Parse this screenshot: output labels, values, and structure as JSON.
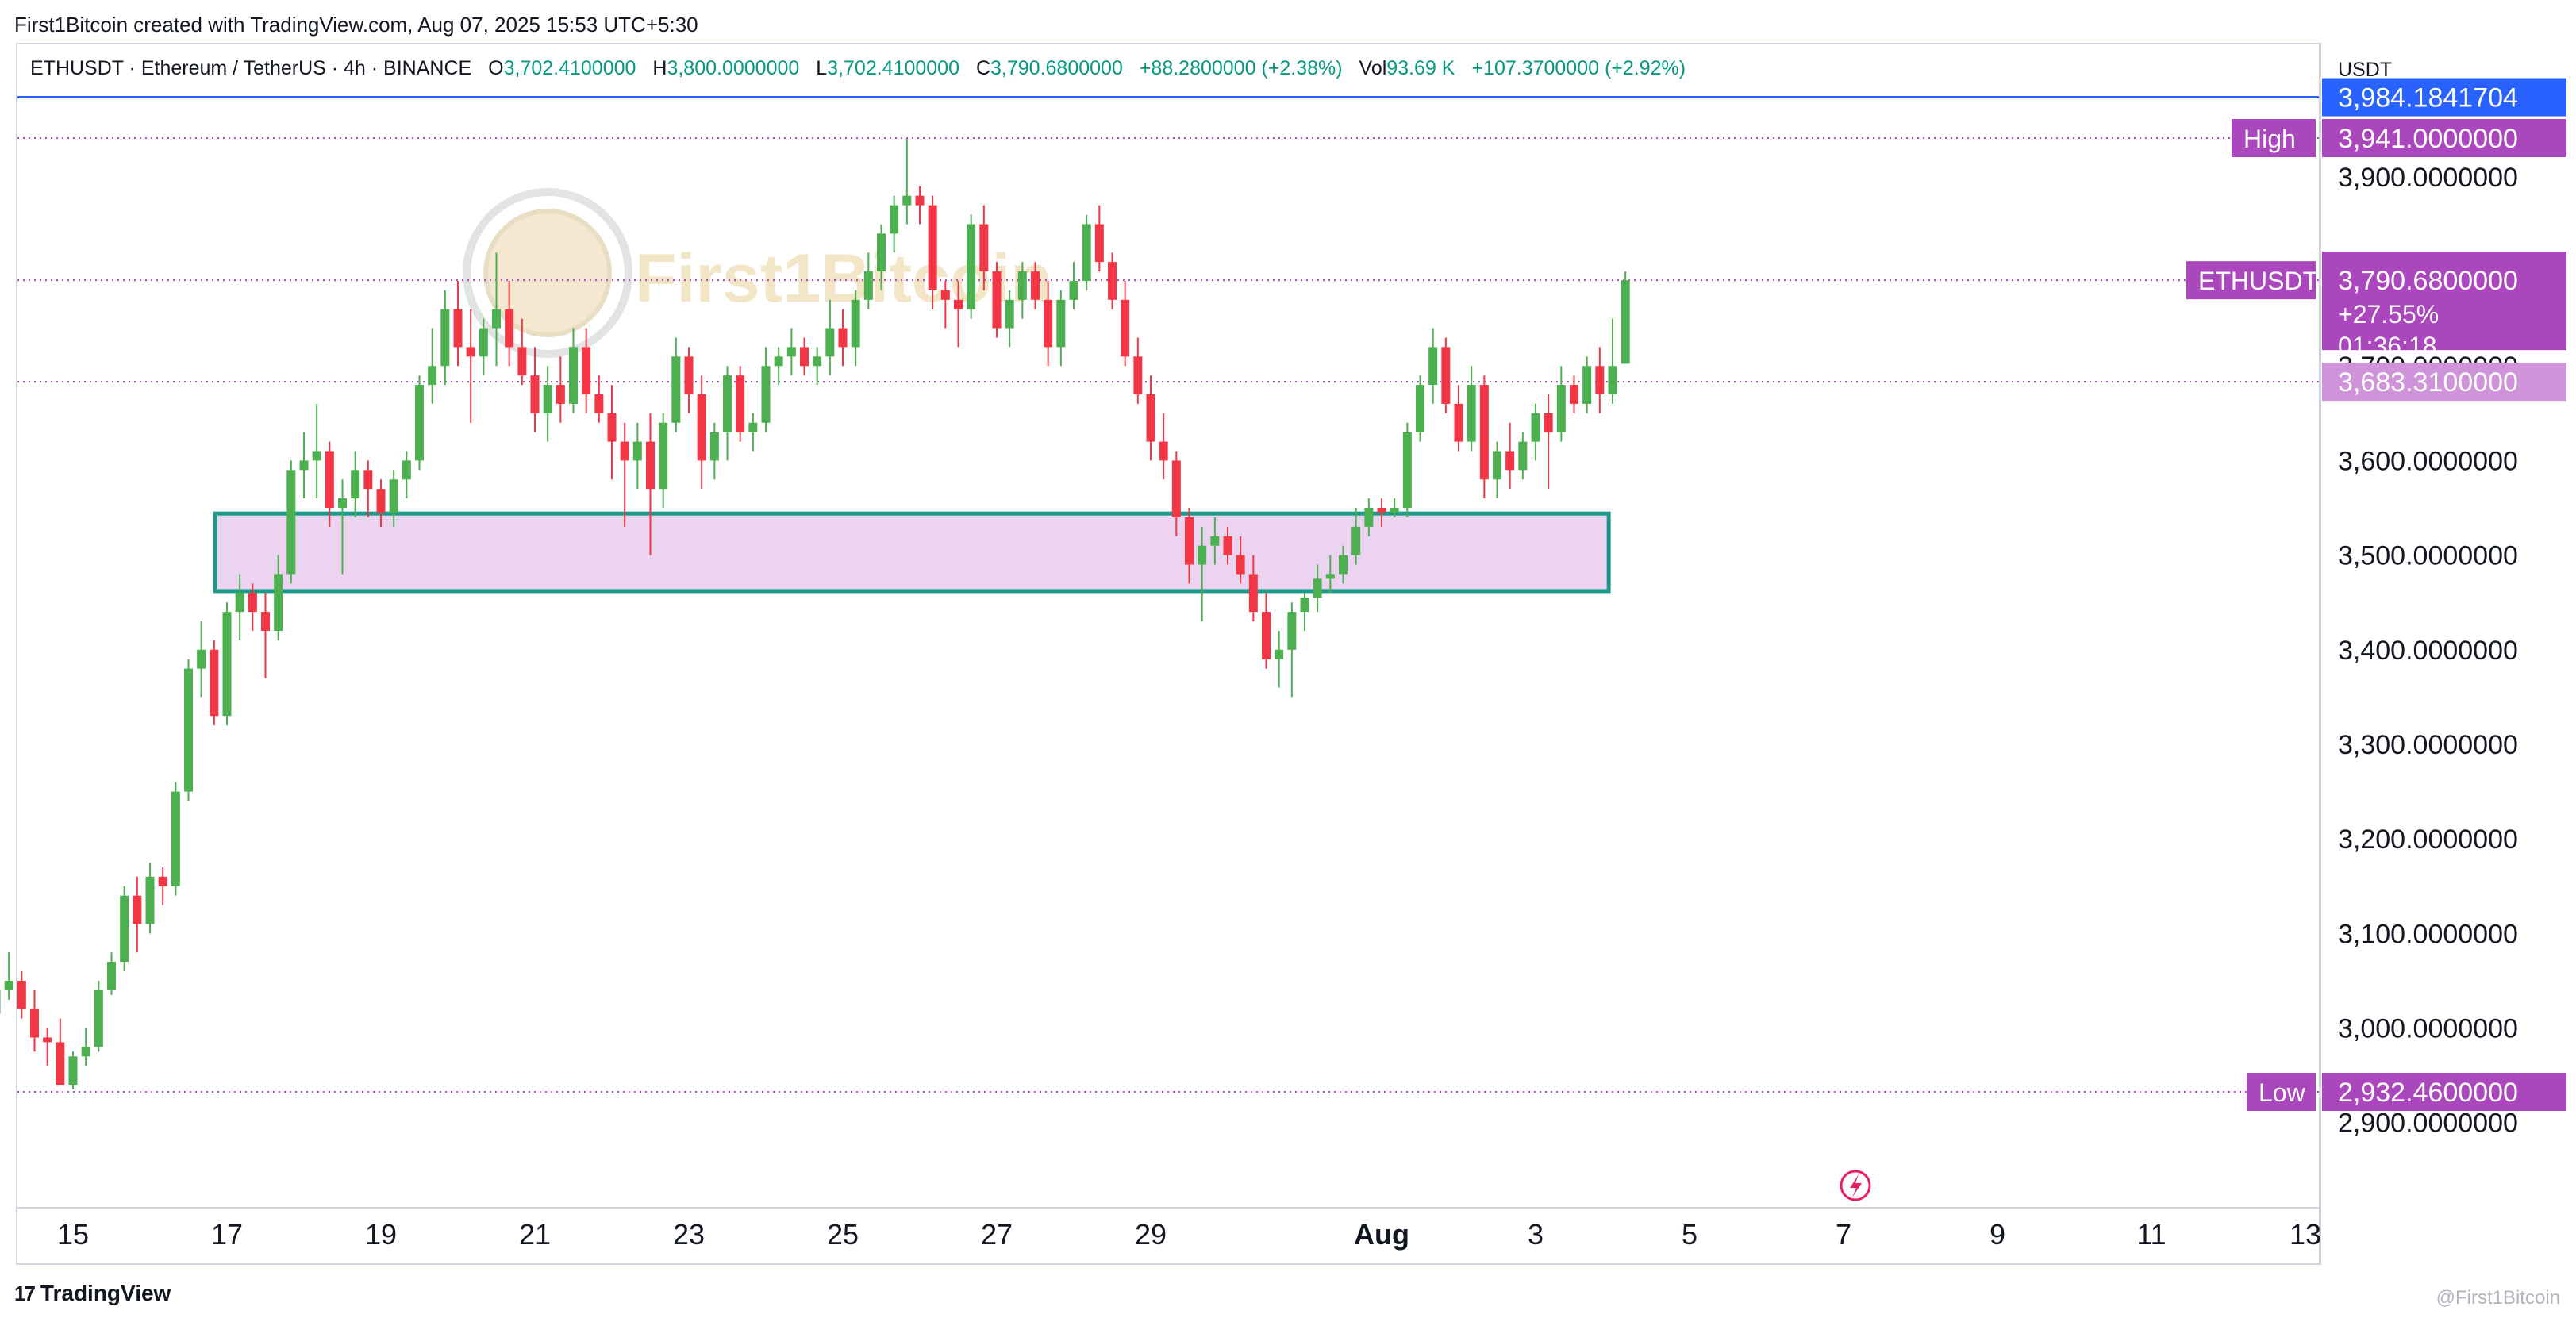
{
  "credit": "First1Bitcoin created with TradingView.com, Aug 07, 2025 15:53 UTC+5:30",
  "legend": {
    "symbol": "ETHUSDT · Ethereum / TetherUS · 4h · BINANCE",
    "o_label": "O",
    "o": "3,702.4100000",
    "h_label": "H",
    "h": "3,800.0000000",
    "l_label": "L",
    "l": "3,702.4100000",
    "c_label": "C",
    "c": "3,790.6800000",
    "change": "+88.2800000 (+2.38%)",
    "vol_label": "Vol",
    "vol": "93.69 K",
    "vol_change": "+107.3700000 (+2.92%)"
  },
  "watermark": "First1Bitcoin",
  "footer": {
    "logo": "17",
    "brand": "TradingView",
    "attribution": "@First1Bitcoin"
  },
  "colors": {
    "up": "#4caf50",
    "down": "#f23645",
    "zone_fill": "#ecd4f0",
    "zone_border": "#1b998b",
    "blue_line": "#2962ff",
    "purple_tag": "#ab47bc"
  },
  "chart_data": {
    "type": "candlestick",
    "axis_unit": "USDT",
    "ylim": [
      2810,
      4040
    ],
    "y_ticks": [
      {
        "value": 3900,
        "label": "3,900.0000000"
      },
      {
        "value": 3800,
        "label": "3,800.0000000"
      },
      {
        "value": 3700,
        "label": "3,700.0000000"
      },
      {
        "value": 3600,
        "label": "3,600.0000000"
      },
      {
        "value": 3500,
        "label": "3,500.0000000"
      },
      {
        "value": 3400,
        "label": "3,400.0000000"
      },
      {
        "value": 3300,
        "label": "3,300.0000000"
      },
      {
        "value": 3200,
        "label": "3,200.0000000"
      },
      {
        "value": 3100,
        "label": "3,100.0000000"
      },
      {
        "value": 3000,
        "label": "3,000.0000000"
      },
      {
        "value": 2900,
        "label": "2,900.0000000"
      }
    ],
    "x_ticks": [
      {
        "day": 15,
        "label": "15",
        "bold": false
      },
      {
        "day": 17,
        "label": "17",
        "bold": false
      },
      {
        "day": 19,
        "label": "19",
        "bold": false
      },
      {
        "day": 21,
        "label": "21",
        "bold": false
      },
      {
        "day": 23,
        "label": "23",
        "bold": false
      },
      {
        "day": 25,
        "label": "25",
        "bold": false
      },
      {
        "day": 27,
        "label": "27",
        "bold": false
      },
      {
        "day": 29,
        "label": "29",
        "bold": false
      },
      {
        "day": 32,
        "label": "Aug",
        "bold": true
      },
      {
        "day": 34,
        "label": "3",
        "bold": false
      },
      {
        "day": 36,
        "label": "5",
        "bold": false
      },
      {
        "day": 38,
        "label": "7",
        "bold": false
      },
      {
        "day": 40,
        "label": "9",
        "bold": false
      },
      {
        "day": 42,
        "label": "11",
        "bold": false
      },
      {
        "day": 44,
        "label": "13",
        "bold": false
      }
    ],
    "levels": [
      {
        "name": "blue-line",
        "value": 3984.1841704,
        "label": "3,984.1841704",
        "tag": "",
        "style": "solid",
        "color": "#2962ff"
      },
      {
        "name": "high",
        "value": 3941.0,
        "label": "3,941.0000000",
        "tag": "High",
        "style": "dotted",
        "color": "#ab47bc"
      },
      {
        "name": "last",
        "value": 3790.68,
        "label": "3,790.6800000",
        "tag": "ETHUSDT",
        "style": "dotted",
        "color": "#ab47bc",
        "extra": [
          "+27.55%",
          "01:36:18"
        ]
      },
      {
        "name": "mid",
        "value": 3683.31,
        "label": "3,683.3100000",
        "tag": "",
        "style": "dotted",
        "color": "#ab47bc"
      },
      {
        "name": "low",
        "value": 2932.46,
        "label": "2,932.4600000",
        "tag": "Low",
        "style": "dotted",
        "color": "#ab47bc"
      }
    ],
    "zone": {
      "start_day": 16.85,
      "end_day": 34.95,
      "top": 3544,
      "bottom": 3462
    },
    "candles": [
      [
        3015,
        3050,
        3005,
        3040
      ],
      [
        3040,
        3080,
        3030,
        3050
      ],
      [
        3050,
        3060,
        3010,
        3020
      ],
      [
        3020,
        3040,
        2975,
        2990
      ],
      [
        2990,
        3000,
        2960,
        2985
      ],
      [
        2985,
        3010,
        2940,
        2940
      ],
      [
        2940,
        2975,
        2935,
        2970
      ],
      [
        2970,
        3000,
        2960,
        2980
      ],
      [
        2980,
        3050,
        2975,
        3040
      ],
      [
        3040,
        3080,
        3035,
        3070
      ],
      [
        3070,
        3150,
        3060,
        3140
      ],
      [
        3140,
        3160,
        3080,
        3110
      ],
      [
        3110,
        3175,
        3100,
        3160
      ],
      [
        3160,
        3170,
        3130,
        3150
      ],
      [
        3150,
        3260,
        3140,
        3250
      ],
      [
        3250,
        3390,
        3240,
        3380
      ],
      [
        3380,
        3430,
        3350,
        3400
      ],
      [
        3400,
        3410,
        3320,
        3330
      ],
      [
        3330,
        3450,
        3320,
        3440
      ],
      [
        3440,
        3480,
        3410,
        3460
      ],
      [
        3460,
        3470,
        3420,
        3440
      ],
      [
        3440,
        3460,
        3370,
        3420
      ],
      [
        3420,
        3500,
        3410,
        3480
      ],
      [
        3480,
        3600,
        3470,
        3590
      ],
      [
        3590,
        3630,
        3560,
        3600
      ],
      [
        3600,
        3660,
        3560,
        3610
      ],
      [
        3610,
        3620,
        3530,
        3550
      ],
      [
        3550,
        3580,
        3480,
        3560
      ],
      [
        3560,
        3610,
        3540,
        3590
      ],
      [
        3590,
        3600,
        3540,
        3570
      ],
      [
        3570,
        3580,
        3530,
        3545
      ],
      [
        3545,
        3590,
        3530,
        3580
      ],
      [
        3580,
        3610,
        3560,
        3600
      ],
      [
        3600,
        3690,
        3590,
        3680
      ],
      [
        3680,
        3740,
        3660,
        3700
      ],
      [
        3700,
        3780,
        3680,
        3760
      ],
      [
        3760,
        3790,
        3700,
        3720
      ],
      [
        3720,
        3760,
        3640,
        3710
      ],
      [
        3710,
        3750,
        3690,
        3740
      ],
      [
        3740,
        3820,
        3700,
        3760
      ],
      [
        3760,
        3790,
        3700,
        3720
      ],
      [
        3720,
        3750,
        3680,
        3690
      ],
      [
        3690,
        3720,
        3630,
        3650
      ],
      [
        3650,
        3700,
        3620,
        3680
      ],
      [
        3680,
        3710,
        3640,
        3660
      ],
      [
        3660,
        3740,
        3650,
        3720
      ],
      [
        3720,
        3740,
        3650,
        3670
      ],
      [
        3670,
        3690,
        3640,
        3650
      ],
      [
        3650,
        3680,
        3580,
        3620
      ],
      [
        3620,
        3640,
        3530,
        3600
      ],
      [
        3600,
        3640,
        3570,
        3620
      ],
      [
        3620,
        3650,
        3500,
        3570
      ],
      [
        3570,
        3650,
        3550,
        3640
      ],
      [
        3640,
        3730,
        3630,
        3710
      ],
      [
        3710,
        3720,
        3650,
        3670
      ],
      [
        3670,
        3690,
        3570,
        3600
      ],
      [
        3600,
        3640,
        3580,
        3630
      ],
      [
        3630,
        3700,
        3600,
        3690
      ],
      [
        3690,
        3700,
        3620,
        3630
      ],
      [
        3630,
        3650,
        3610,
        3640
      ],
      [
        3640,
        3720,
        3630,
        3700
      ],
      [
        3700,
        3720,
        3680,
        3710
      ],
      [
        3710,
        3740,
        3690,
        3720
      ],
      [
        3720,
        3730,
        3690,
        3700
      ],
      [
        3700,
        3720,
        3680,
        3710
      ],
      [
        3710,
        3770,
        3690,
        3740
      ],
      [
        3740,
        3760,
        3700,
        3720
      ],
      [
        3720,
        3780,
        3700,
        3770
      ],
      [
        3770,
        3820,
        3760,
        3800
      ],
      [
        3800,
        3850,
        3780,
        3840
      ],
      [
        3840,
        3880,
        3820,
        3870
      ],
      [
        3870,
        3940,
        3850,
        3880
      ],
      [
        3880,
        3890,
        3850,
        3870
      ],
      [
        3870,
        3880,
        3760,
        3780
      ],
      [
        3780,
        3790,
        3740,
        3770
      ],
      [
        3770,
        3790,
        3720,
        3760
      ],
      [
        3760,
        3860,
        3750,
        3850
      ],
      [
        3850,
        3870,
        3780,
        3800
      ],
      [
        3800,
        3810,
        3730,
        3740
      ],
      [
        3740,
        3780,
        3720,
        3770
      ],
      [
        3770,
        3810,
        3750,
        3800
      ],
      [
        3800,
        3810,
        3760,
        3770
      ],
      [
        3770,
        3790,
        3700,
        3720
      ],
      [
        3720,
        3780,
        3700,
        3770
      ],
      [
        3770,
        3810,
        3760,
        3790
      ],
      [
        3790,
        3860,
        3780,
        3850
      ],
      [
        3850,
        3870,
        3800,
        3810
      ],
      [
        3810,
        3820,
        3760,
        3770
      ],
      [
        3770,
        3790,
        3700,
        3710
      ],
      [
        3710,
        3730,
        3660,
        3670
      ],
      [
        3670,
        3690,
        3600,
        3620
      ],
      [
        3620,
        3650,
        3580,
        3600
      ],
      [
        3600,
        3610,
        3520,
        3540
      ],
      [
        3540,
        3550,
        3470,
        3490
      ],
      [
        3490,
        3530,
        3430,
        3510
      ],
      [
        3510,
        3540,
        3490,
        3520
      ],
      [
        3520,
        3530,
        3490,
        3500
      ],
      [
        3500,
        3520,
        3470,
        3480
      ],
      [
        3480,
        3500,
        3430,
        3440
      ],
      [
        3440,
        3460,
        3380,
        3390
      ],
      [
        3390,
        3420,
        3360,
        3400
      ],
      [
        3400,
        3450,
        3350,
        3440
      ],
      [
        3440,
        3460,
        3420,
        3455
      ],
      [
        3455,
        3490,
        3440,
        3475
      ],
      [
        3475,
        3500,
        3460,
        3480
      ],
      [
        3480,
        3510,
        3470,
        3500
      ],
      [
        3500,
        3550,
        3490,
        3530
      ],
      [
        3530,
        3560,
        3520,
        3550
      ],
      [
        3550,
        3560,
        3530,
        3545
      ],
      [
        3545,
        3560,
        3540,
        3550
      ],
      [
        3550,
        3640,
        3540,
        3630
      ],
      [
        3630,
        3690,
        3620,
        3680
      ],
      [
        3680,
        3740,
        3660,
        3720
      ],
      [
        3720,
        3730,
        3650,
        3660
      ],
      [
        3660,
        3680,
        3610,
        3620
      ],
      [
        3620,
        3700,
        3610,
        3680
      ],
      [
        3680,
        3690,
        3560,
        3580
      ],
      [
        3580,
        3620,
        3560,
        3610
      ],
      [
        3610,
        3640,
        3570,
        3590
      ],
      [
        3590,
        3630,
        3580,
        3620
      ],
      [
        3620,
        3660,
        3600,
        3650
      ],
      [
        3650,
        3670,
        3570,
        3630
      ],
      [
        3630,
        3700,
        3620,
        3680
      ],
      [
        3680,
        3690,
        3650,
        3660
      ],
      [
        3660,
        3710,
        3650,
        3700
      ],
      [
        3700,
        3720,
        3650,
        3670
      ],
      [
        3670,
        3750,
        3660,
        3700
      ],
      [
        3702.41,
        3800,
        3702.41,
        3790.68
      ]
    ],
    "first_candle_day": 14.0,
    "candle_step_days": 0.1666667
  }
}
